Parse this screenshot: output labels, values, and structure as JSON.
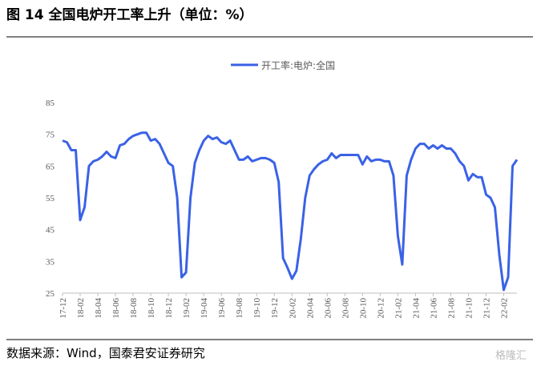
{
  "chart_data": {
    "type": "line",
    "title": "图 14 全国电炉开工率上升（单位：%）",
    "source": "数据来源：Wind，国泰君安证券研究",
    "watermark": "格隆汇",
    "categories": [
      "17-12",
      null,
      null,
      null,
      "18-02",
      null,
      null,
      null,
      "18-04",
      null,
      null,
      null,
      "18-06",
      null,
      null,
      null,
      "18-08",
      null,
      null,
      null,
      "18-10",
      null,
      null,
      null,
      "18-12",
      null,
      null,
      null,
      "19-02",
      null,
      null,
      null,
      "19-04",
      null,
      null,
      null,
      "19-06",
      null,
      null,
      null,
      "19-08",
      null,
      null,
      null,
      "19-10",
      null,
      null,
      null,
      "19-12",
      null,
      null,
      null,
      "20-02",
      null,
      null,
      null,
      "20-04",
      null,
      null,
      null,
      "20-06",
      null,
      null,
      null,
      "20-08",
      null,
      null,
      null,
      "20-10",
      null,
      null,
      null,
      "20-12",
      null,
      null,
      null,
      "21-02",
      null,
      null,
      null,
      "21-04",
      null,
      null,
      null,
      "21-06",
      null,
      null,
      null,
      "21-08",
      null,
      null,
      null,
      "21-10",
      null,
      null,
      null,
      "21-12",
      null,
      null,
      null,
      "22-02",
      null,
      null,
      null
    ],
    "series": [
      {
        "name": "开工率:电炉:全国",
        "color": "#3a62e6",
        "values": [
          73,
          72.5,
          70,
          70,
          48,
          52,
          65,
          66.5,
          67,
          68,
          69.5,
          68,
          67.5,
          71.5,
          72,
          73.5,
          74.5,
          75,
          75.5,
          75.5,
          73,
          73.5,
          72,
          69,
          66,
          65,
          55,
          30,
          31.5,
          55,
          66,
          70,
          73,
          74.5,
          73.5,
          74,
          72.5,
          72,
          73,
          70,
          67,
          67,
          68,
          66.5,
          67,
          67.5,
          67.5,
          67,
          66,
          60,
          36,
          33,
          29.5,
          32,
          42,
          55,
          62,
          64,
          65.5,
          66.5,
          67,
          69,
          67.5,
          68.5,
          68.5,
          68.5,
          68.5,
          68.5,
          65.5,
          68,
          66.5,
          67,
          67,
          66.5,
          66.5,
          62,
          43,
          34,
          62,
          67,
          70.5,
          72,
          72,
          70.5,
          71.5,
          70.5,
          71.5,
          70.5,
          70.5,
          69,
          66.5,
          65,
          60.5,
          62.5,
          61.5,
          61.5,
          56,
          55,
          52,
          37,
          26,
          30,
          65,
          67
        ]
      }
    ],
    "ylim": [
      25,
      85
    ],
    "yticks": [
      25,
      35,
      45,
      55,
      65,
      75,
      85
    ],
    "legend": "top"
  }
}
